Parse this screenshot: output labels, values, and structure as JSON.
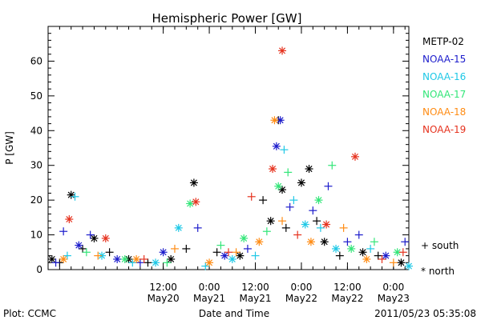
{
  "chart_data": {
    "type": "scatter",
    "title": "Hemispheric Power [GW]",
    "ylabel": "P [GW]",
    "xlabel": "Date and Time",
    "ylim": [
      0,
      70
    ],
    "xlim": [
      "2011-05-19T06:00",
      "2011-05-23T04:00"
    ],
    "yticks": [
      0,
      10,
      20,
      30,
      40,
      50,
      60
    ],
    "xticks": [
      {
        "at": "2011-05-20T12:00",
        "line1": "12:00",
        "line2": "May20"
      },
      {
        "at": "2011-05-21T00:00",
        "line1": "0:00",
        "line2": "May21"
      },
      {
        "at": "2011-05-21T12:00",
        "line1": "12:00",
        "line2": "May21"
      },
      {
        "at": "2011-05-22T00:00",
        "line1": "0:00",
        "line2": "May22"
      },
      {
        "at": "2011-05-22T12:00",
        "line1": "12:00",
        "line2": "May22"
      },
      {
        "at": "2011-05-23T00:00",
        "line1": "0:00",
        "line2": "May23"
      }
    ],
    "symbol_legend": {
      "south": "+ south",
      "north": "* north"
    },
    "series": [
      {
        "name": "METP-02",
        "color": "#000000",
        "points": [
          {
            "t": "2011-05-19T07:00",
            "v": 3,
            "h": "north"
          },
          {
            "t": "2011-05-19T09:00",
            "v": 2,
            "h": "south"
          },
          {
            "t": "2011-05-19T12:00",
            "v": 21.5,
            "h": "north"
          },
          {
            "t": "2011-05-19T15:00",
            "v": 6,
            "h": "south"
          },
          {
            "t": "2011-05-19T18:00",
            "v": 9,
            "h": "north"
          },
          {
            "t": "2011-05-19T22:00",
            "v": 5,
            "h": "south"
          },
          {
            "t": "2011-05-20T03:00",
            "v": 3,
            "h": "north"
          },
          {
            "t": "2011-05-20T08:00",
            "v": 2,
            "h": "south"
          },
          {
            "t": "2011-05-20T14:00",
            "v": 3,
            "h": "north"
          },
          {
            "t": "2011-05-20T18:00",
            "v": 6,
            "h": "south"
          },
          {
            "t": "2011-05-20T20:00",
            "v": 25,
            "h": "north"
          },
          {
            "t": "2011-05-21T02:00",
            "v": 5,
            "h": "south"
          },
          {
            "t": "2011-05-21T08:00",
            "v": 4,
            "h": "north"
          },
          {
            "t": "2011-05-21T14:00",
            "v": 20,
            "h": "south"
          },
          {
            "t": "2011-05-21T16:00",
            "v": 14,
            "h": "north"
          },
          {
            "t": "2011-05-21T18:00",
            "v": 43,
            "h": "south"
          },
          {
            "t": "2011-05-21T19:00",
            "v": 23,
            "h": "north"
          },
          {
            "t": "2011-05-21T20:00",
            "v": 12,
            "h": "south"
          },
          {
            "t": "2011-05-22T00:00",
            "v": 25,
            "h": "north"
          },
          {
            "t": "2011-05-22T02:00",
            "v": 29,
            "h": "north"
          },
          {
            "t": "2011-05-22T04:00",
            "v": 14,
            "h": "south"
          },
          {
            "t": "2011-05-22T06:00",
            "v": 8,
            "h": "north"
          },
          {
            "t": "2011-05-22T10:00",
            "v": 4,
            "h": "south"
          },
          {
            "t": "2011-05-22T16:00",
            "v": 5,
            "h": "north"
          },
          {
            "t": "2011-05-22T20:00",
            "v": 4,
            "h": "south"
          },
          {
            "t": "2011-05-23T02:00",
            "v": 2,
            "h": "north"
          }
        ]
      },
      {
        "name": "NOAA-15",
        "color": "#1c1ccc",
        "points": [
          {
            "t": "2011-05-19T08:00",
            "v": 2,
            "h": "south"
          },
          {
            "t": "2011-05-19T10:00",
            "v": 11,
            "h": "south"
          },
          {
            "t": "2011-05-19T14:00",
            "v": 7,
            "h": "north"
          },
          {
            "t": "2011-05-19T17:00",
            "v": 10,
            "h": "south"
          },
          {
            "t": "2011-05-20T00:00",
            "v": 3,
            "h": "north"
          },
          {
            "t": "2011-05-20T06:00",
            "v": 2,
            "h": "south"
          },
          {
            "t": "2011-05-20T12:00",
            "v": 5,
            "h": "north"
          },
          {
            "t": "2011-05-20T21:00",
            "v": 12,
            "h": "south"
          },
          {
            "t": "2011-05-21T04:00",
            "v": 4,
            "h": "north"
          },
          {
            "t": "2011-05-21T10:00",
            "v": 6,
            "h": "south"
          },
          {
            "t": "2011-05-21T17:30",
            "v": 35.5,
            "h": "north"
          },
          {
            "t": "2011-05-21T18:30",
            "v": 43,
            "h": "north"
          },
          {
            "t": "2011-05-21T21:00",
            "v": 18,
            "h": "south"
          },
          {
            "t": "2011-05-22T03:00",
            "v": 17,
            "h": "south"
          },
          {
            "t": "2011-05-22T07:00",
            "v": 24,
            "h": "south"
          },
          {
            "t": "2011-05-22T12:00",
            "v": 8,
            "h": "south"
          },
          {
            "t": "2011-05-22T15:00",
            "v": 10,
            "h": "south"
          },
          {
            "t": "2011-05-22T22:00",
            "v": 4,
            "h": "north"
          },
          {
            "t": "2011-05-23T03:00",
            "v": 8,
            "h": "south"
          }
        ]
      },
      {
        "name": "NOAA-16",
        "color": "#1ec8e6",
        "points": [
          {
            "t": "2011-05-19T11:00",
            "v": 4,
            "h": "south"
          },
          {
            "t": "2011-05-19T13:00",
            "v": 21,
            "h": "south"
          },
          {
            "t": "2011-05-19T20:00",
            "v": 4,
            "h": "north"
          },
          {
            "t": "2011-05-20T04:00",
            "v": 2,
            "h": "south"
          },
          {
            "t": "2011-05-20T10:00",
            "v": 2,
            "h": "north"
          },
          {
            "t": "2011-05-20T16:00",
            "v": 12,
            "h": "north"
          },
          {
            "t": "2011-05-20T23:00",
            "v": 1,
            "h": "south"
          },
          {
            "t": "2011-05-21T06:00",
            "v": 3,
            "h": "north"
          },
          {
            "t": "2011-05-21T12:00",
            "v": 4,
            "h": "south"
          },
          {
            "t": "2011-05-21T19:30",
            "v": 34.5,
            "h": "south"
          },
          {
            "t": "2011-05-21T22:00",
            "v": 20,
            "h": "south"
          },
          {
            "t": "2011-05-22T01:00",
            "v": 13,
            "h": "north"
          },
          {
            "t": "2011-05-22T05:00",
            "v": 12,
            "h": "south"
          },
          {
            "t": "2011-05-22T09:00",
            "v": 6,
            "h": "north"
          },
          {
            "t": "2011-05-22T18:00",
            "v": 6,
            "h": "south"
          },
          {
            "t": "2011-05-23T04:00",
            "v": 1,
            "h": "north"
          }
        ]
      },
      {
        "name": "NOAA-17",
        "color": "#32e678",
        "points": [
          {
            "t": "2011-05-19T16:00",
            "v": 5,
            "h": "south"
          },
          {
            "t": "2011-05-20T02:00",
            "v": 3,
            "h": "north"
          },
          {
            "t": "2011-05-20T13:00",
            "v": 2,
            "h": "south"
          },
          {
            "t": "2011-05-20T19:00",
            "v": 19,
            "h": "north"
          },
          {
            "t": "2011-05-21T03:00",
            "v": 7,
            "h": "south"
          },
          {
            "t": "2011-05-21T09:00",
            "v": 9,
            "h": "north"
          },
          {
            "t": "2011-05-21T15:00",
            "v": 11,
            "h": "south"
          },
          {
            "t": "2011-05-21T18:00",
            "v": 24,
            "h": "north"
          },
          {
            "t": "2011-05-21T20:30",
            "v": 28,
            "h": "south"
          },
          {
            "t": "2011-05-22T04:30",
            "v": 20,
            "h": "north"
          },
          {
            "t": "2011-05-22T08:00",
            "v": 30,
            "h": "south"
          },
          {
            "t": "2011-05-22T13:00",
            "v": 6,
            "h": "north"
          },
          {
            "t": "2011-05-22T19:00",
            "v": 8,
            "h": "south"
          },
          {
            "t": "2011-05-23T01:00",
            "v": 5,
            "h": "north"
          }
        ]
      },
      {
        "name": "NOAA-18",
        "color": "#ff8c14",
        "points": [
          {
            "t": "2011-05-19T10:00",
            "v": 3,
            "h": "north"
          },
          {
            "t": "2011-05-19T19:00",
            "v": 4,
            "h": "south"
          },
          {
            "t": "2011-05-20T05:00",
            "v": 3,
            "h": "north"
          },
          {
            "t": "2011-05-20T15:00",
            "v": 6,
            "h": "south"
          },
          {
            "t": "2011-05-21T00:00",
            "v": 2,
            "h": "north"
          },
          {
            "t": "2011-05-21T07:00",
            "v": 5,
            "h": "south"
          },
          {
            "t": "2011-05-21T13:00",
            "v": 8,
            "h": "north"
          },
          {
            "t": "2011-05-21T17:00",
            "v": 43,
            "h": "north"
          },
          {
            "t": "2011-05-21T19:00",
            "v": 14,
            "h": "south"
          },
          {
            "t": "2011-05-22T02:30",
            "v": 8,
            "h": "north"
          },
          {
            "t": "2011-05-22T11:00",
            "v": 12,
            "h": "south"
          },
          {
            "t": "2011-05-22T17:00",
            "v": 3,
            "h": "north"
          },
          {
            "t": "2011-05-23T00:00",
            "v": 2,
            "h": "south"
          }
        ]
      },
      {
        "name": "NOAA-19",
        "color": "#e6321e",
        "points": [
          {
            "t": "2011-05-19T11:30",
            "v": 14.5,
            "h": "north"
          },
          {
            "t": "2011-05-19T21:00",
            "v": 9,
            "h": "north"
          },
          {
            "t": "2011-05-20T07:00",
            "v": 3,
            "h": "south"
          },
          {
            "t": "2011-05-20T20:30",
            "v": 19.5,
            "h": "north"
          },
          {
            "t": "2011-05-21T05:00",
            "v": 5,
            "h": "south"
          },
          {
            "t": "2011-05-21T11:00",
            "v": 21,
            "h": "south"
          },
          {
            "t": "2011-05-21T16:30",
            "v": 29,
            "h": "north"
          },
          {
            "t": "2011-05-21T19:00",
            "v": 63,
            "h": "north"
          },
          {
            "t": "2011-05-21T23:00",
            "v": 10,
            "h": "south"
          },
          {
            "t": "2011-05-22T06:30",
            "v": 13,
            "h": "north"
          },
          {
            "t": "2011-05-22T14:00",
            "v": 32.5,
            "h": "north"
          },
          {
            "t": "2011-05-22T21:00",
            "v": 3,
            "h": "south"
          },
          {
            "t": "2011-05-23T02:30",
            "v": 5,
            "h": "south"
          }
        ]
      }
    ]
  },
  "footer": {
    "left": "Plot: CCMC",
    "right": "2011/05/23 05:35:08"
  }
}
